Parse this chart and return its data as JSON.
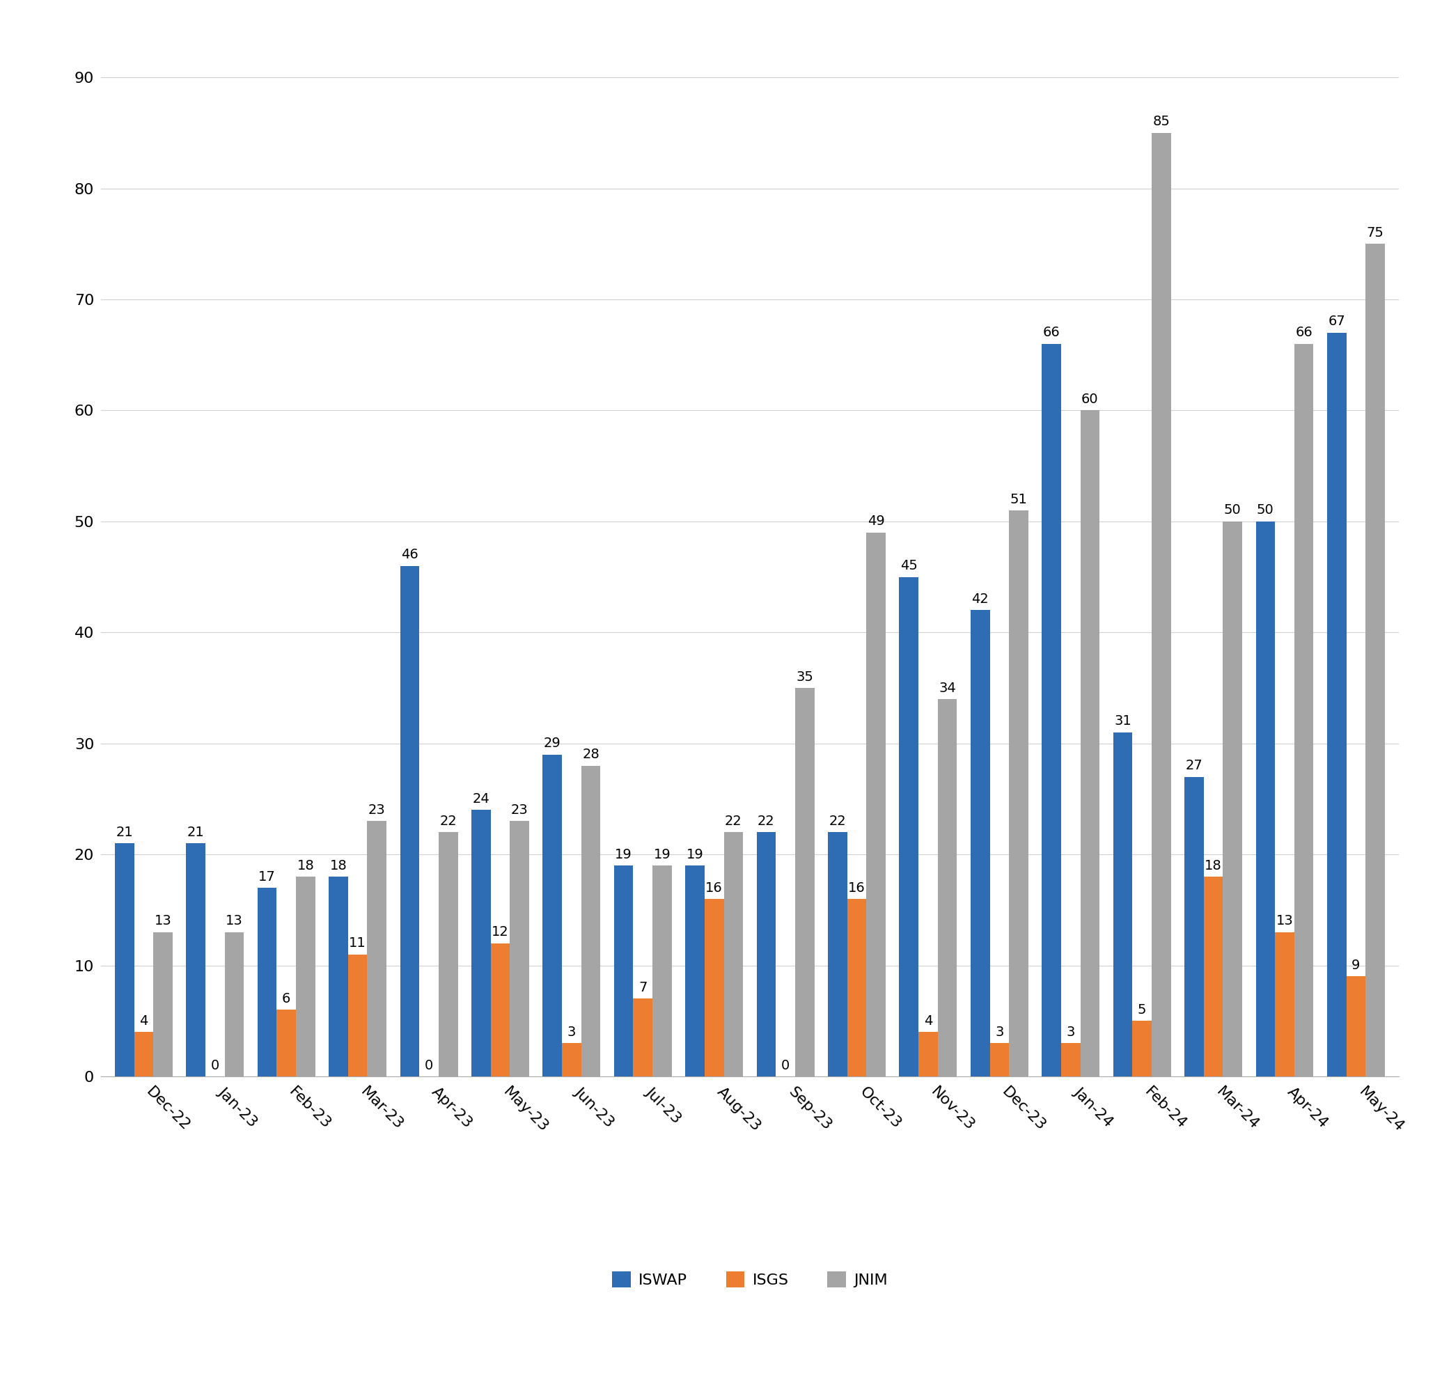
{
  "categories": [
    "Dec-22",
    "Jan-23",
    "Feb-23",
    "Mar-23",
    "Apr-23",
    "May-23",
    "Jun-23",
    "Jul-23",
    "Aug-23",
    "Sep-23",
    "Oct-23",
    "Nov-23",
    "Dec-23",
    "Jan-24",
    "Feb-24",
    "Mar-24",
    "Apr-24",
    "May-24"
  ],
  "ISWAP": [
    21,
    21,
    17,
    18,
    46,
    24,
    29,
    19,
    19,
    22,
    22,
    45,
    42,
    66,
    31,
    27,
    50,
    67
  ],
  "ISGS": [
    4,
    0,
    6,
    11,
    0,
    12,
    3,
    7,
    16,
    0,
    16,
    4,
    3,
    3,
    5,
    18,
    13,
    9
  ],
  "JNIM": [
    13,
    13,
    18,
    23,
    22,
    23,
    28,
    19,
    22,
    35,
    49,
    34,
    51,
    60,
    85,
    50,
    66,
    75
  ],
  "iswap_color": "#2e6db4",
  "isgs_color": "#ed7d31",
  "jnim_color": "#a5a5a5",
  "background_color": "#ffffff",
  "ylim": [
    0,
    92
  ],
  "yticks": [
    0,
    10,
    20,
    30,
    40,
    50,
    60,
    70,
    80,
    90
  ],
  "bar_width": 0.27,
  "label_fontsize": 14,
  "tick_fontsize": 16,
  "legend_fontsize": 16,
  "grid_color": "#d0d0d0",
  "xticklabel_rotation": 315
}
